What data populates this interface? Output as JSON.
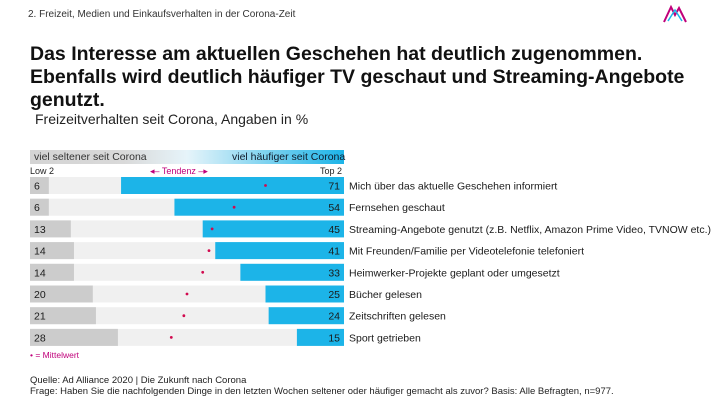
{
  "header": {
    "section": "2. Freizeit, Medien und Einkaufsverhalten in der Corona-Zeit",
    "headline": "Das Interesse am aktuellen Geschehen hat deutlich zugenommen. Ebenfalls wird deutlich häufiger TV geschaut und Streaming-Angebote genutzt."
  },
  "legend": {
    "subtitle": "Freizeitverhalten seit Corona, Angaben in %",
    "scale_left": "viel seltener seit Corona",
    "scale_right": "viel häufiger seit Corona",
    "low": "Low 2",
    "top": "Top 2",
    "tendenz": "◂– Tendenz –▸",
    "mittelwert": "• = Mittelwert"
  },
  "footer": {
    "source": "Quelle: Ad Alliance 2020 | Die Zukunft nach Corona",
    "question": "Frage: Haben Sie die nachfolgenden Dinge in den letzten Wochen seltener oder häufiger gemacht als zuvor? Basis: Alle Befragten, n=977."
  },
  "colors": {
    "low_bar": "#cccccc",
    "top_bar": "#1cb4e8",
    "row_bg": "#f0f0f0",
    "mean_dot": "#d10a4f",
    "accent": "#c0007a"
  },
  "chart_data": {
    "type": "bar",
    "title": "Freizeitverhalten seit Corona, Angaben in %",
    "categories": [
      "Mich über das aktuelle Geschehen informiert",
      "Fernsehen geschaut",
      "Streaming-Angebote genutzt (z.B. Netflix, Amazon Prime Video, TVNOW etc.)",
      "Mit Freunden/Familie per Videotelefonie telefoniert",
      "Heimwerker-Projekte geplant oder umgesetzt",
      "Bücher gelesen",
      "Zeitschriften gelesen",
      "Sport getrieben"
    ],
    "series": [
      {
        "name": "Low 2",
        "values": [
          6,
          6,
          13,
          14,
          14,
          20,
          21,
          28
        ]
      },
      {
        "name": "Top 2",
        "values": [
          71,
          54,
          45,
          41,
          33,
          25,
          24,
          15
        ]
      }
    ],
    "mean_position": [
      0.75,
      0.65,
      0.58,
      0.57,
      0.55,
      0.5,
      0.49,
      0.45
    ],
    "xlim": [
      0,
      100
    ]
  }
}
